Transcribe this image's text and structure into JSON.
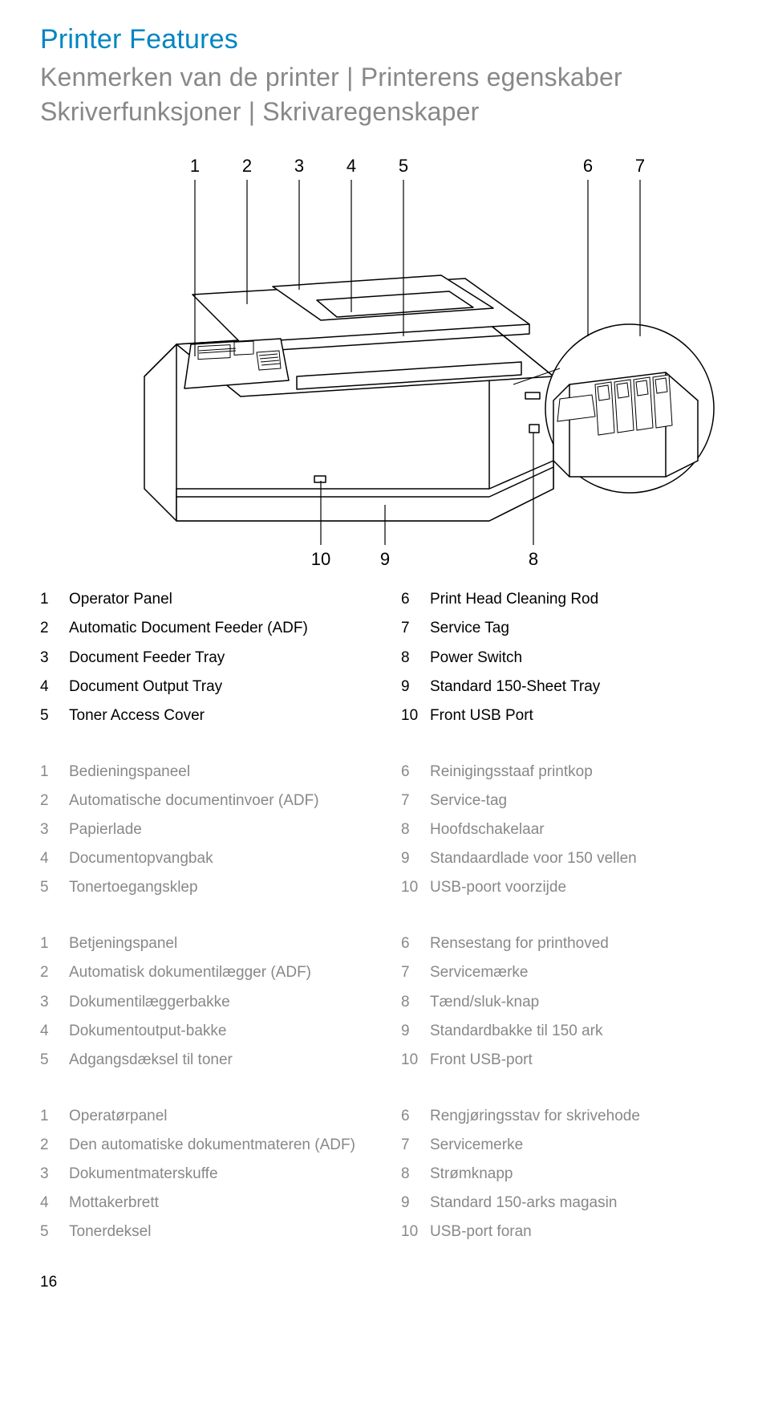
{
  "title_main": "Printer Features",
  "title_sub_line1": "Kenmerken van de printer | Printerens egenskaber",
  "title_sub_line2": "Skriverfunksjoner | Skrivaregenskaper",
  "diagram": {
    "top_labels": [
      "1",
      "2",
      "3",
      "4",
      "5",
      "6",
      "7"
    ],
    "bottom_labels": [
      "10",
      "9",
      "8"
    ]
  },
  "legend_en": {
    "left": [
      [
        "1",
        "Operator Panel"
      ],
      [
        "2",
        "Automatic Document Feeder (ADF)"
      ],
      [
        "3",
        "Document Feeder Tray"
      ],
      [
        "4",
        "Document Output Tray"
      ],
      [
        "5",
        "Toner Access Cover"
      ]
    ],
    "right": [
      [
        "6",
        "Print Head Cleaning Rod"
      ],
      [
        "7",
        "Service Tag"
      ],
      [
        "8",
        "Power Switch"
      ],
      [
        "9",
        "Standard 150-Sheet Tray"
      ],
      [
        "10",
        "Front USB Port"
      ]
    ]
  },
  "legend_nl": {
    "left": [
      [
        "1",
        "Bedieningspaneel"
      ],
      [
        "2",
        "Automatische documentinvoer (ADF)"
      ],
      [
        "3",
        "Papierlade"
      ],
      [
        "4",
        "Documentopvangbak"
      ],
      [
        "5",
        "Tonertoegangsklep"
      ]
    ],
    "right": [
      [
        "6",
        "Reinigingsstaaf printkop"
      ],
      [
        "7",
        "Service-tag"
      ],
      [
        "8",
        "Hoofdschakelaar"
      ],
      [
        "9",
        "Standaardlade voor 150 vellen"
      ],
      [
        "10",
        "USB-poort voorzijde"
      ]
    ]
  },
  "legend_da": {
    "left": [
      [
        "1",
        "Betjeningspanel"
      ],
      [
        "2",
        "Automatisk dokumentilægger (ADF)"
      ],
      [
        "3",
        "Dokumentilæggerbakke"
      ],
      [
        "4",
        "Dokumentoutput-bakke"
      ],
      [
        "5",
        "Adgangsdæksel til toner"
      ]
    ],
    "right": [
      [
        "6",
        "Rensestang for printhoved"
      ],
      [
        "7",
        "Servicemærke"
      ],
      [
        "8",
        "Tænd/sluk-knap"
      ],
      [
        "9",
        "Standardbakke til 150 ark"
      ],
      [
        "10",
        "Front USB-port"
      ]
    ]
  },
  "legend_no": {
    "left": [
      [
        "1",
        "Operatørpanel"
      ],
      [
        "2",
        "Den automatiske dokumentmateren (ADF)"
      ],
      [
        "3",
        "Dokumentmaterskuffe"
      ],
      [
        "4",
        "Mottakerbrett"
      ],
      [
        "5",
        "Tonerdeksel"
      ]
    ],
    "right": [
      [
        "6",
        "Rengjøringsstav for skrivehode"
      ],
      [
        "7",
        "Servicemerke"
      ],
      [
        "8",
        "Strømknapp"
      ],
      [
        "9",
        "Standard 150-arks magasin"
      ],
      [
        "10",
        "USB-port foran"
      ]
    ]
  },
  "page_number": "16",
  "colors": {
    "accent": "#0085c3",
    "grey_text": "#888888",
    "line": "#000000",
    "body_bg": "#ffffff"
  }
}
